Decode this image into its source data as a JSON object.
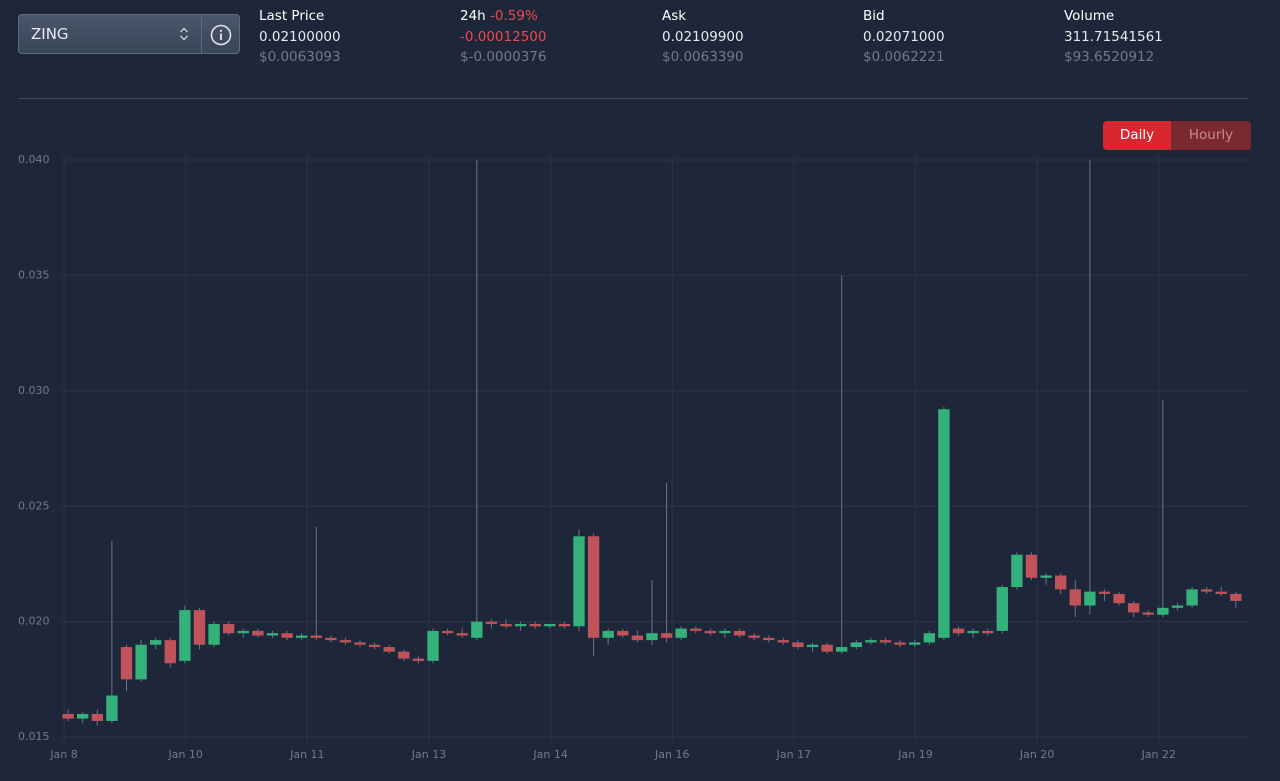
{
  "header": {
    "symbol": "ZING",
    "stats": [
      {
        "label": "Last Price",
        "value": "0.02100000",
        "usd": "$0.0063093"
      },
      {
        "label": "24h",
        "change": "-0.59%",
        "value": "-0.00012500",
        "usd": "$-0.0000376"
      },
      {
        "label": "Ask",
        "value": "0.02109900",
        "usd": "$0.0063390"
      },
      {
        "label": "Bid",
        "value": "0.02071000",
        "usd": "$0.0062221"
      },
      {
        "label": "Volume",
        "value": "311.71541561",
        "usd": "$93.6520912"
      }
    ]
  },
  "buttons": [
    "Daily",
    "Hourly"
  ],
  "chart_data": {
    "type": "candlestick",
    "up_color": "#35b27b",
    "down_color": "#c0525a",
    "wick_color": "#6b7587",
    "grid": true,
    "ylim": [
      0.0147,
      0.0402
    ],
    "yticks": [
      {
        "value": 0.015,
        "label": "0.015"
      },
      {
        "value": 0.02,
        "label": "0.020"
      },
      0.025,
      {
        "value": 0.03,
        "label": "0.030"
      },
      0.035,
      {
        "value": 0.04,
        "label": "0.040"
      }
    ],
    "xlim": [
      -0.05,
      14.6
    ],
    "xticks": [
      {
        "value": 0,
        "label": "Jan 8"
      },
      {
        "value": 1.5,
        "label": "Jan 10"
      },
      {
        "value": 3,
        "label": "Jan 11"
      },
      {
        "value": 4.5,
        "label": "Jan 13"
      },
      {
        "value": 6,
        "label": "Jan 14"
      },
      {
        "value": 7.5,
        "label": "Jan 16"
      },
      {
        "value": 9,
        "label": "Jan 17"
      },
      {
        "value": 10.5,
        "label": "Jan 19"
      },
      {
        "value": 12,
        "label": "Jan 20"
      },
      {
        "value": 13.5,
        "label": "Jan 22"
      }
    ],
    "x": [
      0.05,
      0.23,
      0.41,
      0.59,
      0.77,
      0.95,
      1.13,
      1.31,
      1.49,
      1.67,
      1.85,
      2.03,
      2.21,
      2.39,
      2.57,
      2.75,
      2.93,
      3.11,
      3.29,
      3.47,
      3.65,
      3.83,
      4.01,
      4.19,
      4.37,
      4.55,
      4.73,
      4.91,
      5.09,
      5.27,
      5.45,
      5.63,
      5.81,
      5.99,
      6.17,
      6.35,
      6.53,
      6.71,
      6.89,
      7.07,
      7.25,
      7.43,
      7.61,
      7.79,
      7.97,
      8.15,
      8.33,
      8.51,
      8.69,
      8.87,
      9.05,
      9.23,
      9.41,
      9.59,
      9.77,
      9.95,
      10.13,
      10.31,
      10.49,
      10.67,
      10.85,
      11.03,
      11.21,
      11.39,
      11.57,
      11.75,
      11.93,
      12.11,
      12.29,
      12.47,
      12.65,
      12.83,
      13.01,
      13.19,
      13.37,
      13.55,
      13.73,
      13.91,
      14.09,
      14.27,
      14.45
    ],
    "open": [
      0.016,
      0.0158,
      0.016,
      0.0157,
      0.0189,
      0.0175,
      0.019,
      0.0192,
      0.0183,
      0.0205,
      0.019,
      0.0199,
      0.0195,
      0.0196,
      0.0194,
      0.0195,
      0.0193,
      0.0194,
      0.0193,
      0.0192,
      0.0191,
      0.019,
      0.0189,
      0.0187,
      0.0184,
      0.0183,
      0.0196,
      0.0195,
      0.0193,
      0.02,
      0.0199,
      0.0198,
      0.0199,
      0.0198,
      0.0199,
      0.0198,
      0.0237,
      0.0193,
      0.0196,
      0.0194,
      0.0192,
      0.0195,
      0.0193,
      0.0197,
      0.0196,
      0.0195,
      0.0196,
      0.0194,
      0.0193,
      0.0192,
      0.0191,
      0.0189,
      0.019,
      0.0187,
      0.0189,
      0.0191,
      0.0192,
      0.0191,
      0.019,
      0.0191,
      0.0193,
      0.0197,
      0.0195,
      0.0196,
      0.0196,
      0.0215,
      0.0229,
      0.0219,
      0.022,
      0.0214,
      0.0207,
      0.0213,
      0.0212,
      0.0208,
      0.0204,
      0.0203,
      0.0206,
      0.0207,
      0.0214,
      0.0213,
      0.0212
    ],
    "high": [
      0.0162,
      0.0161,
      0.0162,
      0.0235,
      0.019,
      0.0192,
      0.0193,
      0.0193,
      0.0207,
      0.0206,
      0.02,
      0.02,
      0.0197,
      0.0197,
      0.0196,
      0.0196,
      0.0195,
      0.0241,
      0.0194,
      0.0193,
      0.0192,
      0.0191,
      0.019,
      0.0188,
      0.0185,
      0.0197,
      0.0197,
      0.0197,
      0.04,
      0.0201,
      0.0201,
      0.02,
      0.02,
      0.0199,
      0.02,
      0.024,
      0.0238,
      0.0197,
      0.0197,
      0.0196,
      0.0218,
      0.026,
      0.0198,
      0.0198,
      0.0197,
      0.0197,
      0.0197,
      0.0195,
      0.0194,
      0.0193,
      0.0192,
      0.0191,
      0.0191,
      0.035,
      0.0192,
      0.0193,
      0.0193,
      0.0192,
      0.0192,
      0.0196,
      0.0293,
      0.0198,
      0.0197,
      0.0197,
      0.0216,
      0.023,
      0.023,
      0.0221,
      0.0221,
      0.0218,
      0.04,
      0.0214,
      0.0213,
      0.0209,
      0.0205,
      0.0296,
      0.0208,
      0.0215,
      0.0215,
      0.0215,
      0.0213
    ],
    "low": [
      0.0157,
      0.0156,
      0.0155,
      0.0156,
      0.017,
      0.0174,
      0.0188,
      0.018,
      0.0182,
      0.0188,
      0.0189,
      0.0194,
      0.0193,
      0.0193,
      0.0193,
      0.0192,
      0.0192,
      0.0192,
      0.0191,
      0.019,
      0.0189,
      0.0188,
      0.0186,
      0.0183,
      0.0182,
      0.0182,
      0.0194,
      0.0193,
      0.0192,
      0.0197,
      0.0197,
      0.0196,
      0.0197,
      0.0197,
      0.0197,
      0.0196,
      0.0185,
      0.019,
      0.0193,
      0.0191,
      0.019,
      0.0191,
      0.0192,
      0.0195,
      0.0194,
      0.0193,
      0.0193,
      0.0192,
      0.0191,
      0.019,
      0.0188,
      0.0187,
      0.0186,
      0.0186,
      0.0188,
      0.019,
      0.019,
      0.0189,
      0.0189,
      0.019,
      0.0192,
      0.0194,
      0.0193,
      0.0194,
      0.0195,
      0.0214,
      0.0218,
      0.0216,
      0.0212,
      0.0202,
      0.0203,
      0.0209,
      0.0207,
      0.0202,
      0.0202,
      0.0202,
      0.0205,
      0.0206,
      0.0212,
      0.0211,
      0.0206
    ],
    "close": [
      0.0158,
      0.016,
      0.0157,
      0.0168,
      0.0175,
      0.019,
      0.0192,
      0.0182,
      0.0205,
      0.019,
      0.0199,
      0.0195,
      0.0196,
      0.0194,
      0.0195,
      0.0193,
      0.0194,
      0.0193,
      0.0192,
      0.0191,
      0.019,
      0.0189,
      0.0187,
      0.0184,
      0.0183,
      0.0196,
      0.0195,
      0.0194,
      0.02,
      0.0199,
      0.0198,
      0.0199,
      0.0198,
      0.0199,
      0.0198,
      0.0237,
      0.0193,
      0.0196,
      0.0194,
      0.0192,
      0.0195,
      0.0193,
      0.0197,
      0.0196,
      0.0195,
      0.0196,
      0.0194,
      0.0193,
      0.0192,
      0.0191,
      0.0189,
      0.019,
      0.0187,
      0.0189,
      0.0191,
      0.0192,
      0.0191,
      0.019,
      0.0191,
      0.0195,
      0.0292,
      0.0195,
      0.0196,
      0.0195,
      0.0215,
      0.0229,
      0.0219,
      0.022,
      0.0214,
      0.0207,
      0.0213,
      0.0212,
      0.0208,
      0.0204,
      0.0203,
      0.0206,
      0.0207,
      0.0214,
      0.0213,
      0.0212,
      0.0209
    ]
  }
}
